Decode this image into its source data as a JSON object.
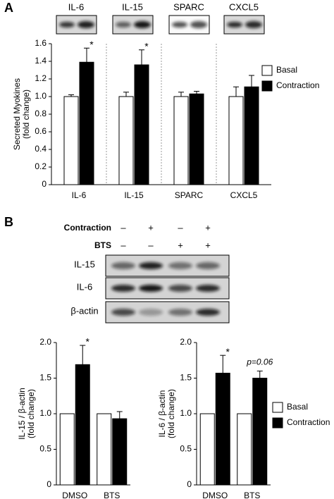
{
  "panels": [
    "A",
    "B"
  ],
  "blots_a": [
    "IL-6",
    "IL-15",
    "SPARC",
    "CXCL5"
  ],
  "blot_b": {
    "conditions": [
      {
        "name": "Contraction",
        "signs": [
          "–",
          "+",
          "–",
          "+"
        ]
      },
      {
        "name": "BTS",
        "signs": [
          "–",
          "–",
          "+",
          "+"
        ]
      }
    ],
    "rows": [
      "IL-15",
      "IL-6",
      "β-actin"
    ]
  },
  "chart_data": [
    {
      "type": "bar",
      "ylabel": [
        "Secreted Myokines",
        "(fold change)"
      ],
      "categories": [
        "IL-6",
        "IL-15",
        "SPARC",
        "CXCL5"
      ],
      "series": [
        {
          "name": "Basal",
          "color": "#ffffff",
          "values": [
            1.0,
            1.0,
            1.0,
            1.0
          ],
          "errors": [
            0.02,
            0.05,
            0.05,
            0.11
          ]
        },
        {
          "name": "Contraction",
          "color": "#000000",
          "values": [
            1.39,
            1.36,
            1.03,
            1.11
          ],
          "errors": [
            0.16,
            0.17,
            0.03,
            0.13
          ],
          "annotations": [
            "*",
            "*",
            null,
            null
          ]
        }
      ],
      "ylim": [
        0,
        1.6
      ],
      "yticks": [
        0,
        0.2,
        0.4,
        0.6,
        0.8,
        {
          "value": 1,
          "label": "1.0"
        },
        1.2,
        1.4,
        1.6
      ],
      "legend": "right"
    },
    {
      "type": "bar",
      "ylabel": [
        "IL-15 / β-actin",
        "(fold change)"
      ],
      "categories": [
        "DMSO",
        "BTS"
      ],
      "series": [
        {
          "name": "Basal",
          "color": "#ffffff",
          "values": [
            1.0,
            1.0
          ]
        },
        {
          "name": "Contraction",
          "color": "#000000",
          "values": [
            1.69,
            0.93
          ],
          "errors": [
            0.27,
            0.1
          ],
          "annotations": [
            "*",
            null
          ]
        }
      ],
      "ylim": [
        0,
        2
      ],
      "yticks": [
        0,
        0.5,
        {
          "value": 1,
          "label": "1.0"
        },
        1.5,
        {
          "value": 2,
          "label": "2.0"
        }
      ]
    },
    {
      "type": "bar",
      "ylabel": [
        "IL-6 / β-actin",
        "(fold change)"
      ],
      "categories": [
        "DMSO",
        "BTS"
      ],
      "series": [
        {
          "name": "Basal",
          "color": "#ffffff",
          "values": [
            1.0,
            1.0
          ]
        },
        {
          "name": "Contraction",
          "color": "#000000",
          "values": [
            1.57,
            1.5
          ],
          "errors": [
            0.25,
            0.1
          ],
          "annotations": [
            "*",
            "p=0.06"
          ]
        }
      ],
      "ylim": [
        0,
        2
      ],
      "yticks": [
        0,
        0.5,
        {
          "value": 1,
          "label": "1.0"
        },
        1.5,
        {
          "value": 2,
          "label": "2.0"
        }
      ],
      "legend": "right"
    }
  ]
}
